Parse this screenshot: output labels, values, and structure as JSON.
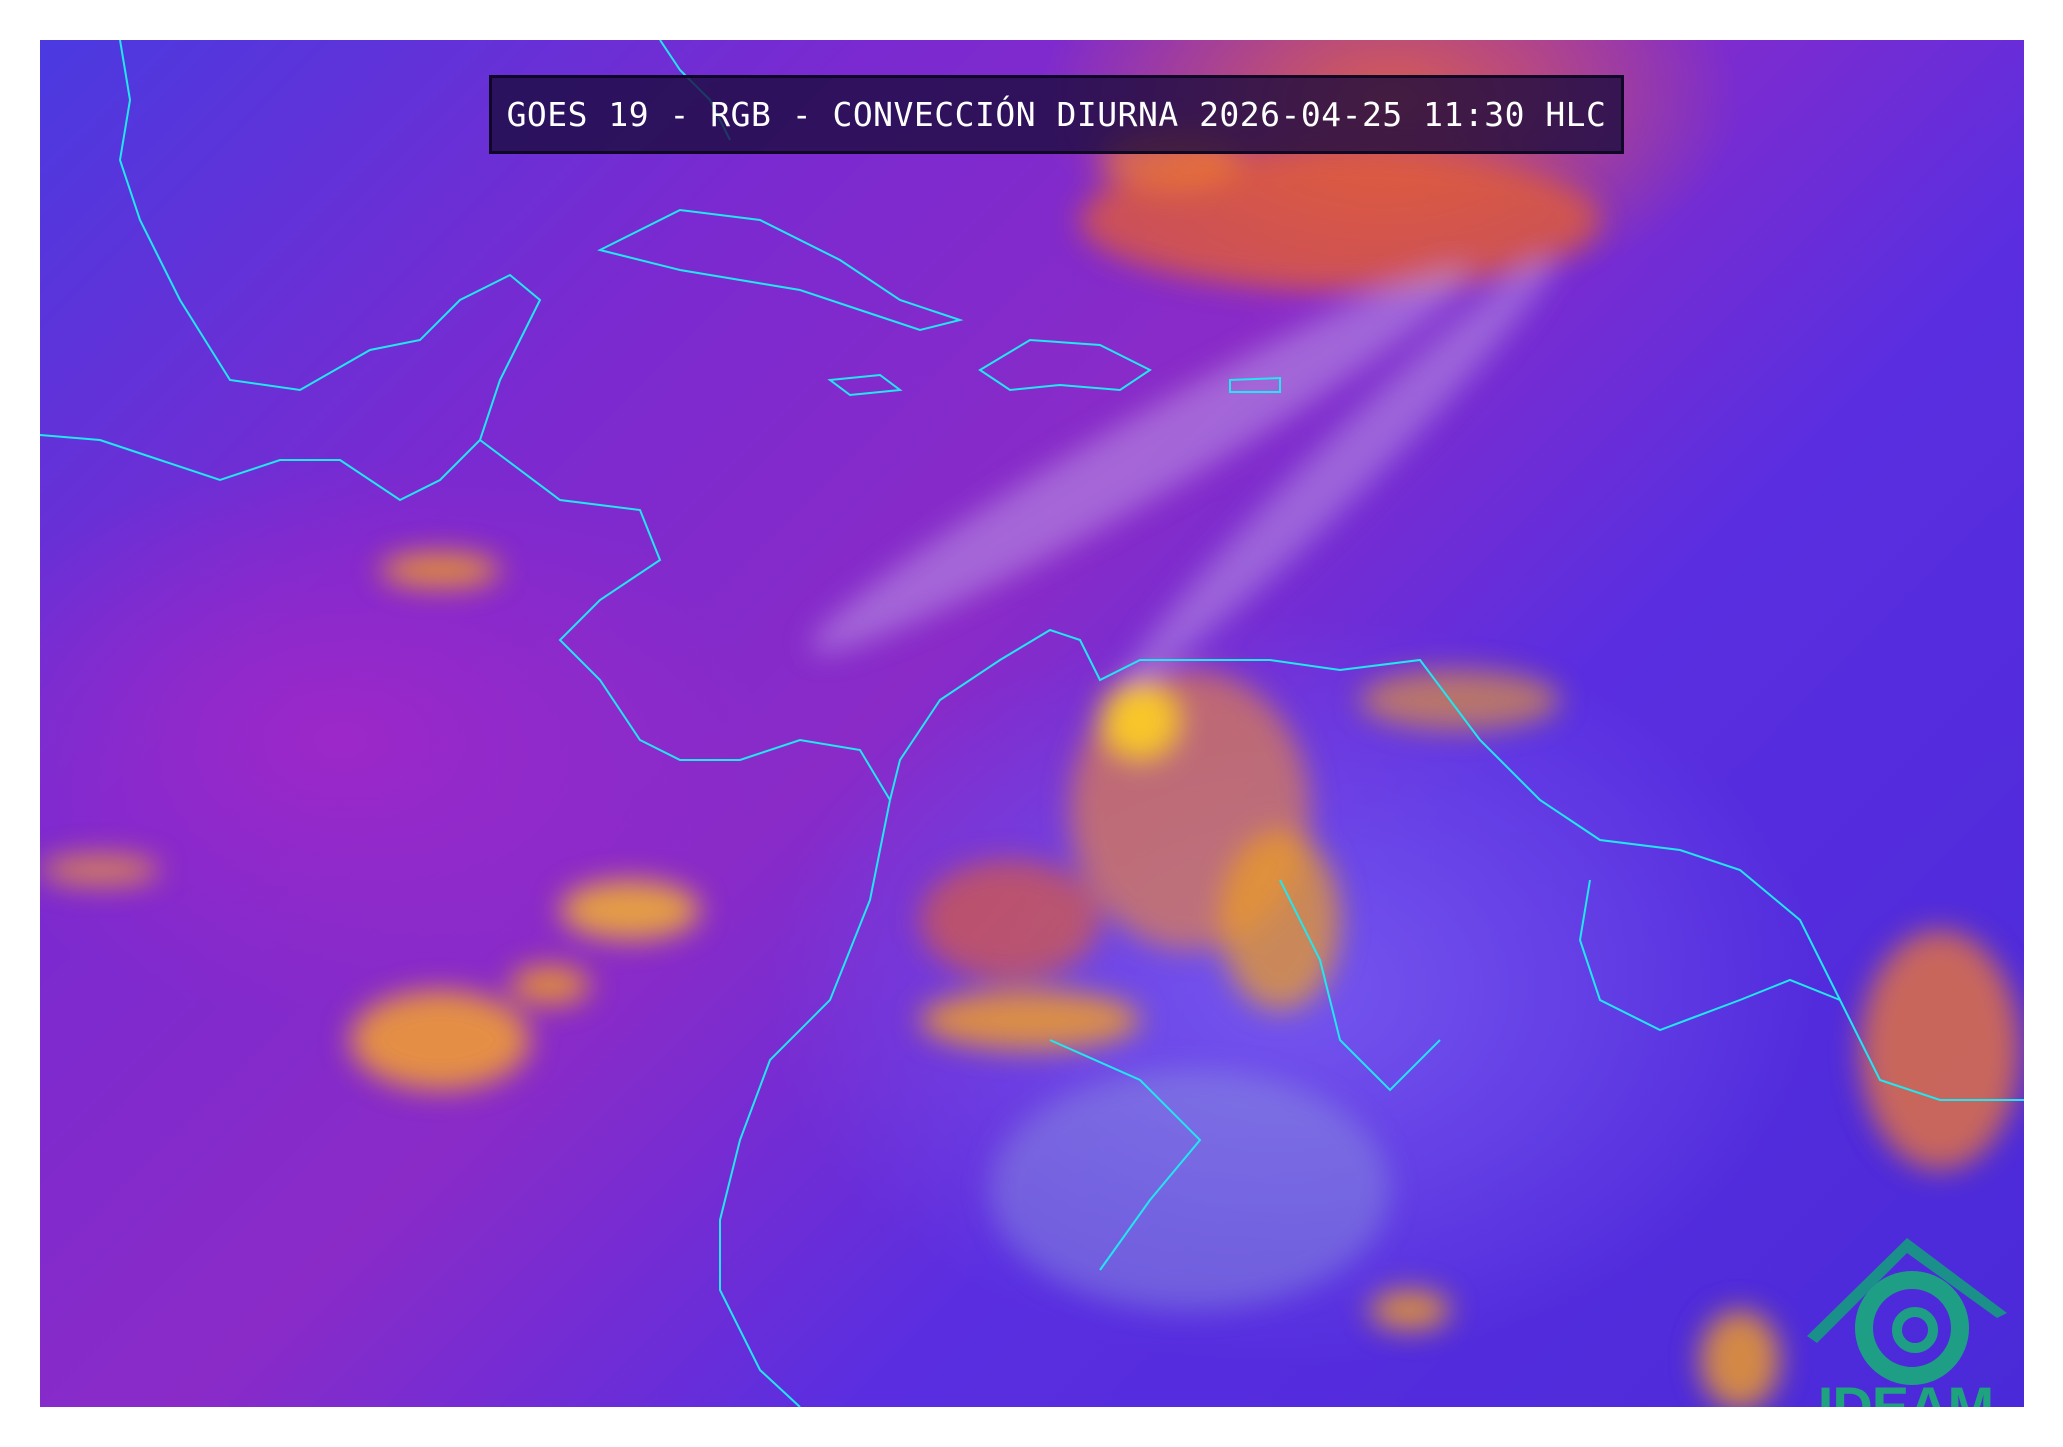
{
  "title": "GOES 19 - RGB - CONVECCIÓN DIURNA 2026-04-25 11:30 HLC",
  "logo": {
    "text": "IDEAM",
    "color": "#1fa27e"
  },
  "colors": {
    "ocean_background": "#7a2ad0",
    "coastline": "#22e6f0",
    "convection": "#f5a020",
    "title_box": "#190a3c"
  }
}
